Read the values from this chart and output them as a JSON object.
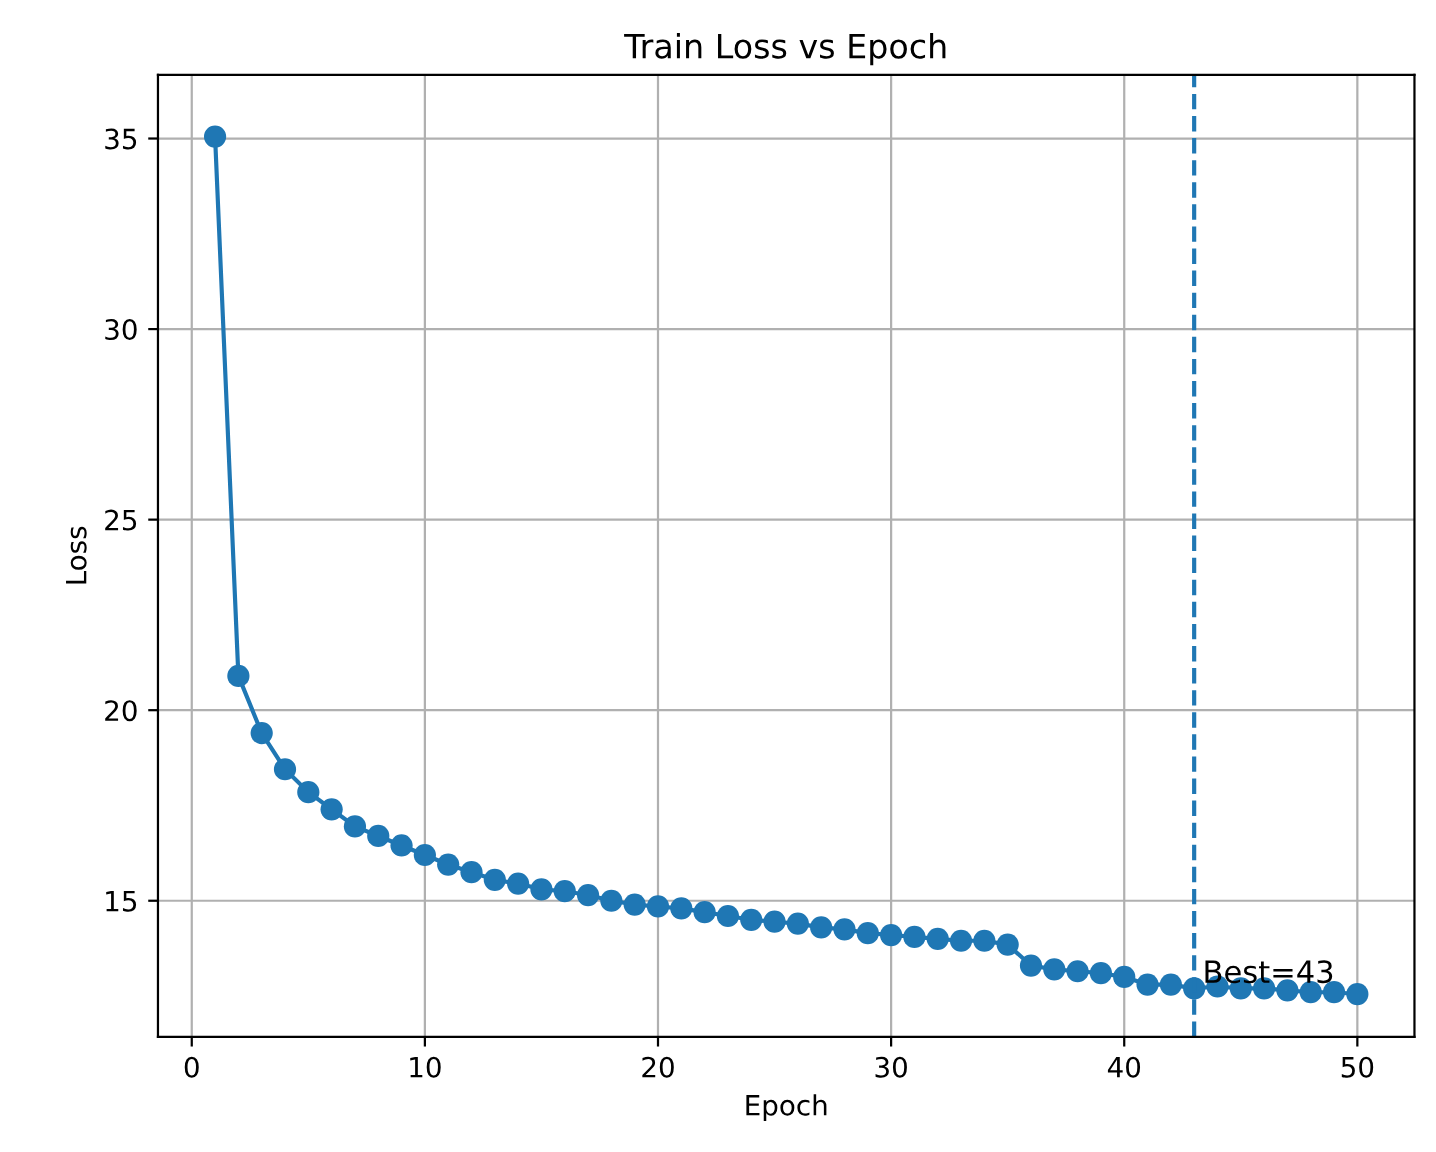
{
  "chart_data": {
    "type": "line",
    "title": "Train Loss vs Epoch",
    "xlabel": "Epoch",
    "ylabel": "Loss",
    "x": [
      1,
      2,
      3,
      4,
      5,
      6,
      7,
      8,
      9,
      10,
      11,
      12,
      13,
      14,
      15,
      16,
      17,
      18,
      19,
      20,
      21,
      22,
      23,
      24,
      25,
      26,
      27,
      28,
      29,
      30,
      31,
      32,
      33,
      34,
      35,
      36,
      37,
      38,
      39,
      40,
      41,
      42,
      43,
      44,
      45,
      46,
      47,
      48,
      49,
      50
    ],
    "series": [
      {
        "color": "#1f77b4",
        "values": [
          35.05,
          20.9,
          19.4,
          18.45,
          17.85,
          17.4,
          16.95,
          16.7,
          16.45,
          16.2,
          15.95,
          15.75,
          15.55,
          15.45,
          15.3,
          15.25,
          15.15,
          15.0,
          14.9,
          14.85,
          14.8,
          14.7,
          14.6,
          14.5,
          14.45,
          14.4,
          14.3,
          14.25,
          14.15,
          14.1,
          14.05,
          14.0,
          13.95,
          13.95,
          13.85,
          13.3,
          13.2,
          13.15,
          13.1,
          13.0,
          12.8,
          12.8,
          12.7,
          12.75,
          12.7,
          12.7,
          12.65,
          12.6,
          12.6,
          12.55
        ]
      }
    ],
    "marker": "circle",
    "line_style": "solid",
    "xlim": [
      -1.45,
      52.45
    ],
    "ylim": [
      11.43,
      36.67
    ],
    "xticks": [
      0,
      10,
      20,
      30,
      40,
      50
    ],
    "yticks": [
      15,
      20,
      25,
      30,
      35
    ],
    "grid": true,
    "ref_lines": [
      {
        "axis": "x",
        "value": 43,
        "color": "#1f77b4",
        "line_style": "dashed"
      }
    ],
    "annotations": [
      {
        "text": "Best=43",
        "x": 43,
        "y": 12.7
      }
    ]
  }
}
